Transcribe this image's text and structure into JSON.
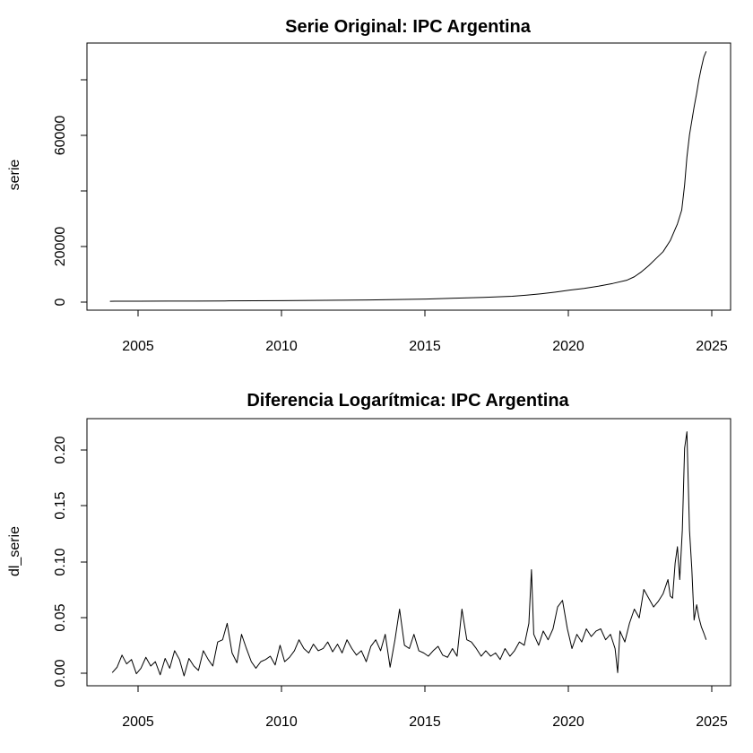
{
  "chart_data": [
    {
      "type": "line",
      "title": "Serie Original: IPC Argentina",
      "xlabel": "",
      "ylabel": "serie",
      "xlim": [
        2003.2,
        2025.6
      ],
      "ylim": [
        -3000,
        93000
      ],
      "xticks": [
        2005,
        2010,
        2015,
        2020,
        2025
      ],
      "xtick_labels": [
        "2005",
        "2010",
        "2015",
        "2020",
        "2025"
      ],
      "yticks": [
        0,
        20000,
        60000
      ],
      "ytick_labels": [
        "0",
        "20000",
        "60000"
      ],
      "grid": false,
      "series": [
        {
          "x": [
            2004.0,
            2005.0,
            2006.0,
            2007.0,
            2008.0,
            2009.0,
            2010.0,
            2011.0,
            2012.0,
            2013.0,
            2014.0,
            2015.0,
            2016.0,
            2017.0,
            2018.0,
            2018.5,
            2019.0,
            2019.5,
            2020.0,
            2020.5,
            2021.0,
            2021.5,
            2022.0,
            2022.25,
            2022.5,
            2022.75,
            2023.0,
            2023.25,
            2023.5,
            2023.75,
            2023.9,
            2024.0,
            2024.08,
            2024.17,
            2024.25,
            2024.33,
            2024.42,
            2024.5,
            2024.58,
            2024.67,
            2024.75
          ],
          "values": [
            200,
            220,
            250,
            280,
            320,
            370,
            430,
            500,
            580,
            670,
            820,
            1000,
            1300,
            1600,
            2000,
            2400,
            2900,
            3500,
            4200,
            4800,
            5600,
            6600,
            7800,
            9000,
            10800,
            13000,
            15500,
            18000,
            22000,
            28000,
            33000,
            42000,
            52000,
            60000,
            65000,
            70000,
            75000,
            80000,
            84000,
            88000,
            90000
          ]
        }
      ]
    },
    {
      "type": "line",
      "title": "Diferencia Logarítmica: IPC Argentina",
      "xlabel": "",
      "ylabel": "dl_serie",
      "xlim": [
        2003.2,
        2025.6
      ],
      "ylim": [
        -0.012,
        0.232
      ],
      "xticks": [
        2005,
        2010,
        2015,
        2020,
        2025
      ],
      "xtick_labels": [
        "2005",
        "2010",
        "2015",
        "2020",
        "2025"
      ],
      "yticks": [
        0.0,
        0.05,
        0.1,
        0.15,
        0.2
      ],
      "ytick_labels": [
        "0.00",
        "0.05",
        "0.10",
        "0.15",
        "0.20"
      ],
      "grid": false,
      "series": [
        {
          "x": [
            2004.08,
            2004.25,
            2004.42,
            2004.58,
            2004.75,
            2004.92,
            2005.08,
            2005.25,
            2005.42,
            2005.58,
            2005.75,
            2005.92,
            2006.08,
            2006.25,
            2006.42,
            2006.58,
            2006.75,
            2006.92,
            2007.08,
            2007.25,
            2007.42,
            2007.58,
            2007.75,
            2007.92,
            2008.08,
            2008.25,
            2008.42,
            2008.58,
            2008.75,
            2008.92,
            2009.08,
            2009.25,
            2009.42,
            2009.58,
            2009.75,
            2009.92,
            2010.08,
            2010.25,
            2010.42,
            2010.58,
            2010.75,
            2010.92,
            2011.08,
            2011.25,
            2011.42,
            2011.58,
            2011.75,
            2011.92,
            2012.08,
            2012.25,
            2012.42,
            2012.58,
            2012.75,
            2012.92,
            2013.08,
            2013.25,
            2013.42,
            2013.58,
            2013.75,
            2013.92,
            2014.08,
            2014.25,
            2014.42,
            2014.58,
            2014.75,
            2014.92,
            2015.08,
            2015.25,
            2015.42,
            2015.58,
            2015.75,
            2015.92,
            2016.08,
            2016.25,
            2016.42,
            2016.58,
            2016.75,
            2016.92,
            2017.08,
            2017.25,
            2017.42,
            2017.58,
            2017.75,
            2017.92,
            2018.08,
            2018.25,
            2018.42,
            2018.58,
            2018.67,
            2018.75,
            2018.92,
            2019.08,
            2019.25,
            2019.42,
            2019.58,
            2019.75,
            2019.92,
            2020.08,
            2020.25,
            2020.42,
            2020.58,
            2020.75,
            2020.92,
            2021.08,
            2021.25,
            2021.42,
            2021.58,
            2021.67,
            2021.75,
            2021.92,
            2022.08,
            2022.25,
            2022.42,
            2022.58,
            2022.75,
            2022.92,
            2023.08,
            2023.25,
            2023.42,
            2023.5,
            2023.58,
            2023.67,
            2023.75,
            2023.83,
            2023.92,
            2024.0,
            2024.08,
            2024.17,
            2024.25,
            2024.33,
            2024.42,
            2024.5,
            2024.58,
            2024.67,
            2024.75
          ],
          "values": [
            0.0,
            0.005,
            0.016,
            0.008,
            0.012,
            -0.001,
            0.004,
            0.014,
            0.006,
            0.01,
            -0.002,
            0.013,
            0.004,
            0.02,
            0.012,
            -0.003,
            0.013,
            0.006,
            0.002,
            0.02,
            0.012,
            0.006,
            0.028,
            0.03,
            0.045,
            0.018,
            0.009,
            0.035,
            0.022,
            0.01,
            0.004,
            0.01,
            0.012,
            0.015,
            0.007,
            0.025,
            0.01,
            0.014,
            0.02,
            0.03,
            0.022,
            0.018,
            0.026,
            0.02,
            0.022,
            0.028,
            0.019,
            0.026,
            0.018,
            0.03,
            0.022,
            0.016,
            0.02,
            0.01,
            0.024,
            0.03,
            0.02,
            0.035,
            0.005,
            0.03,
            0.058,
            0.025,
            0.022,
            0.035,
            0.02,
            0.018,
            0.015,
            0.02,
            0.024,
            0.016,
            0.014,
            0.022,
            0.015,
            0.058,
            0.03,
            0.028,
            0.022,
            0.015,
            0.02,
            0.015,
            0.018,
            0.012,
            0.022,
            0.015,
            0.02,
            0.028,
            0.025,
            0.045,
            0.094,
            0.035,
            0.025,
            0.038,
            0.03,
            0.04,
            0.06,
            0.066,
            0.04,
            0.022,
            0.035,
            0.028,
            0.04,
            0.033,
            0.038,
            0.04,
            0.03,
            0.035,
            0.022,
            0.0,
            0.038,
            0.028,
            0.045,
            0.058,
            0.05,
            0.076,
            0.068,
            0.06,
            0.065,
            0.072,
            0.085,
            0.07,
            0.068,
            0.1,
            0.115,
            0.085,
            0.13,
            0.205,
            0.22,
            0.13,
            0.095,
            0.048,
            0.062,
            0.05,
            0.042,
            0.036,
            0.03
          ]
        }
      ]
    }
  ]
}
